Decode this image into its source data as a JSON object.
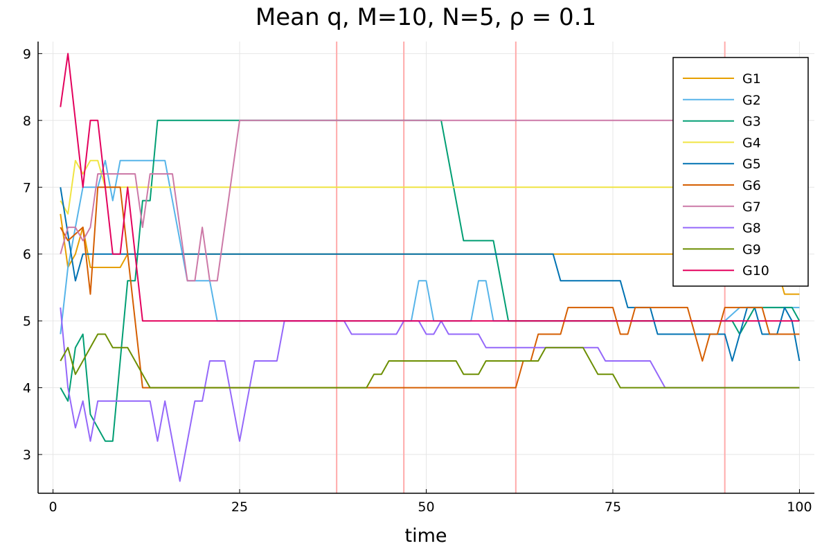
{
  "chart_data": {
    "type": "line",
    "title": "Mean q, M=10, N=5, ρ = 0.1",
    "xlabel": "time",
    "ylabel": "",
    "xlim": [
      -2,
      102
    ],
    "ylim": [
      2.42,
      9.18
    ],
    "xticks": [
      0,
      25,
      50,
      75,
      100
    ],
    "yticks": [
      3,
      4,
      5,
      6,
      7,
      8,
      9
    ],
    "grid": true,
    "legend_position": "top-right",
    "vlines": [
      38,
      47,
      62,
      90
    ],
    "vline_color": "#ffaaaa",
    "series": [
      {
        "name": "G1",
        "color": "#e69f00",
        "points": [
          [
            1,
            6.6
          ],
          [
            2,
            5.8
          ],
          [
            3,
            6.0
          ],
          [
            4,
            6.4
          ],
          [
            5,
            5.8
          ],
          [
            9,
            5.8
          ],
          [
            10,
            6.0
          ],
          [
            90,
            6.0
          ],
          [
            97,
            5.8
          ],
          [
            98,
            5.4
          ],
          [
            100,
            5.4
          ]
        ]
      },
      {
        "name": "G2",
        "color": "#56b4e9",
        "points": [
          [
            1,
            4.8
          ],
          [
            2,
            5.8
          ],
          [
            3,
            6.4
          ],
          [
            4,
            7.0
          ],
          [
            6,
            7.0
          ],
          [
            7,
            7.4
          ],
          [
            8,
            6.8
          ],
          [
            9,
            7.4
          ],
          [
            15,
            7.4
          ],
          [
            18,
            5.6
          ],
          [
            21,
            5.6
          ],
          [
            22,
            5.0
          ],
          [
            48,
            5.0
          ],
          [
            49,
            5.6
          ],
          [
            50,
            5.6
          ],
          [
            51,
            5.0
          ],
          [
            56,
            5.0
          ],
          [
            57,
            5.6
          ],
          [
            58,
            5.6
          ],
          [
            59,
            5.0
          ],
          [
            90,
            5.0
          ],
          [
            92,
            5.2
          ],
          [
            100,
            5.2
          ]
        ]
      },
      {
        "name": "G3",
        "color": "#009e73",
        "points": [
          [
            1,
            4.0
          ],
          [
            2,
            3.8
          ],
          [
            3,
            4.6
          ],
          [
            4,
            4.8
          ],
          [
            5,
            3.6
          ],
          [
            7,
            3.2
          ],
          [
            8,
            3.2
          ],
          [
            10,
            5.6
          ],
          [
            11,
            5.6
          ],
          [
            12,
            6.8
          ],
          [
            13,
            6.8
          ],
          [
            14,
            8.0
          ],
          [
            52,
            8.0
          ],
          [
            55,
            6.2
          ],
          [
            59,
            6.2
          ],
          [
            61,
            5.0
          ],
          [
            91,
            5.0
          ],
          [
            92,
            4.8
          ],
          [
            94,
            5.2
          ],
          [
            99,
            5.2
          ],
          [
            100,
            5.0
          ]
        ]
      },
      {
        "name": "G4",
        "color": "#f0e442",
        "points": [
          [
            1,
            6.8
          ],
          [
            2,
            6.6
          ],
          [
            3,
            7.4
          ],
          [
            4,
            7.2
          ],
          [
            5,
            7.4
          ],
          [
            6,
            7.4
          ],
          [
            7,
            7.0
          ],
          [
            8,
            7.0
          ],
          [
            100,
            7.0
          ]
        ]
      },
      {
        "name": "G5",
        "color": "#0072b2",
        "points": [
          [
            1,
            7.0
          ],
          [
            3,
            5.6
          ],
          [
            4,
            6.0
          ],
          [
            67,
            6.0
          ],
          [
            68,
            5.6
          ],
          [
            76,
            5.6
          ],
          [
            77,
            5.2
          ],
          [
            80,
            5.2
          ],
          [
            81,
            4.8
          ],
          [
            90,
            4.8
          ],
          [
            91,
            4.4
          ],
          [
            93,
            5.2
          ],
          [
            94,
            5.2
          ],
          [
            95,
            4.8
          ],
          [
            97,
            4.8
          ],
          [
            98,
            5.2
          ],
          [
            99,
            5.0
          ],
          [
            100,
            4.4
          ]
        ]
      },
      {
        "name": "G6",
        "color": "#d55e00",
        "points": [
          [
            1,
            6.4
          ],
          [
            2,
            6.2
          ],
          [
            4,
            6.4
          ],
          [
            5,
            5.4
          ],
          [
            6,
            7.0
          ],
          [
            9,
            7.0
          ],
          [
            12,
            4.0
          ],
          [
            62,
            4.0
          ],
          [
            63,
            4.4
          ],
          [
            64,
            4.4
          ],
          [
            65,
            4.8
          ],
          [
            68,
            4.8
          ],
          [
            69,
            5.2
          ],
          [
            75,
            5.2
          ],
          [
            76,
            4.8
          ],
          [
            77,
            4.8
          ],
          [
            78,
            5.2
          ],
          [
            85,
            5.2
          ],
          [
            87,
            4.4
          ],
          [
            88,
            4.8
          ],
          [
            89,
            4.8
          ],
          [
            90,
            5.2
          ],
          [
            95,
            5.2
          ],
          [
            96,
            4.8
          ],
          [
            100,
            4.8
          ]
        ]
      },
      {
        "name": "G7",
        "color": "#cc79a7",
        "points": [
          [
            1,
            6.0
          ],
          [
            2,
            6.4
          ],
          [
            3,
            6.4
          ],
          [
            4,
            6.2
          ],
          [
            5,
            6.4
          ],
          [
            6,
            7.2
          ],
          [
            10,
            7.2
          ],
          [
            11,
            7.2
          ],
          [
            12,
            6.4
          ],
          [
            13,
            7.2
          ],
          [
            16,
            7.2
          ],
          [
            18,
            5.6
          ],
          [
            19,
            5.6
          ],
          [
            20,
            6.4
          ],
          [
            21,
            5.6
          ],
          [
            22,
            5.6
          ],
          [
            25,
            8.0
          ],
          [
            100,
            8.0
          ]
        ]
      },
      {
        "name": "G8",
        "color": "#9467fa",
        "points": [
          [
            1,
            5.2
          ],
          [
            2,
            4.0
          ],
          [
            3,
            3.4
          ],
          [
            4,
            3.8
          ],
          [
            5,
            3.2
          ],
          [
            6,
            3.8
          ],
          [
            13,
            3.8
          ],
          [
            14,
            3.2
          ],
          [
            15,
            3.8
          ],
          [
            17,
            2.6
          ],
          [
            19,
            3.8
          ],
          [
            20,
            3.8
          ],
          [
            21,
            4.4
          ],
          [
            23,
            4.4
          ],
          [
            25,
            3.2
          ],
          [
            27,
            4.4
          ],
          [
            30,
            4.4
          ],
          [
            31,
            5.0
          ],
          [
            39,
            5.0
          ],
          [
            40,
            4.8
          ],
          [
            46,
            4.8
          ],
          [
            47,
            5.0
          ],
          [
            49,
            5.0
          ],
          [
            50,
            4.8
          ],
          [
            51,
            4.8
          ],
          [
            52,
            5.0
          ],
          [
            53,
            4.8
          ],
          [
            57,
            4.8
          ],
          [
            58,
            4.6
          ],
          [
            73,
            4.6
          ],
          [
            74,
            4.4
          ],
          [
            80,
            4.4
          ],
          [
            82,
            4.0
          ],
          [
            100,
            4.0
          ]
        ]
      },
      {
        "name": "G9",
        "color": "#6b8e00",
        "points": [
          [
            1,
            4.4
          ],
          [
            2,
            4.6
          ],
          [
            3,
            4.2
          ],
          [
            6,
            4.8
          ],
          [
            7,
            4.8
          ],
          [
            8,
            4.6
          ],
          [
            10,
            4.6
          ],
          [
            13,
            4.0
          ],
          [
            42,
            4.0
          ],
          [
            43,
            4.2
          ],
          [
            44,
            4.2
          ],
          [
            45,
            4.4
          ],
          [
            54,
            4.4
          ],
          [
            55,
            4.2
          ],
          [
            57,
            4.2
          ],
          [
            58,
            4.4
          ],
          [
            65,
            4.4
          ],
          [
            66,
            4.6
          ],
          [
            71,
            4.6
          ],
          [
            73,
            4.2
          ],
          [
            75,
            4.2
          ],
          [
            76,
            4.0
          ],
          [
            100,
            4.0
          ]
        ]
      },
      {
        "name": "G10",
        "color": "#e3005c",
        "points": [
          [
            1,
            8.2
          ],
          [
            2,
            9.0
          ],
          [
            4,
            7.0
          ],
          [
            5,
            8.0
          ],
          [
            6,
            8.0
          ],
          [
            8,
            6.0
          ],
          [
            9,
            6.0
          ],
          [
            10,
            7.0
          ],
          [
            12,
            5.0
          ],
          [
            100,
            5.0
          ]
        ]
      }
    ]
  }
}
